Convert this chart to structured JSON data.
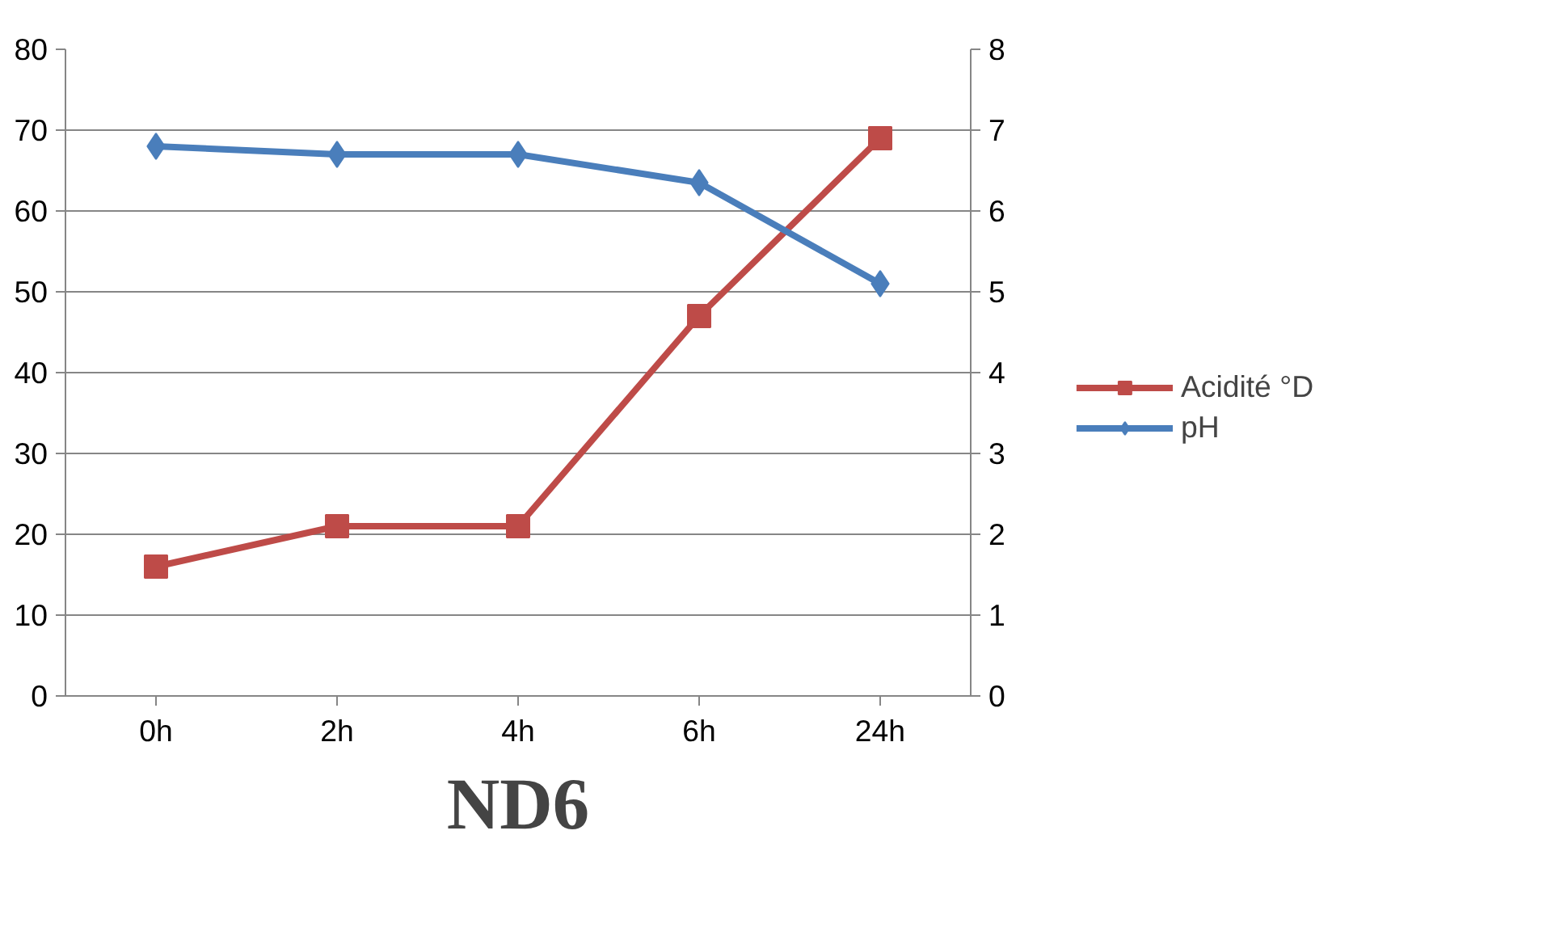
{
  "chart_data": {
    "type": "line",
    "title": "ND6",
    "categories": [
      "0h",
      "2h",
      "4h",
      "6h",
      "24h"
    ],
    "series": [
      {
        "name": "Acidité °D",
        "color": "#be4b48",
        "marker": "square",
        "values": [
          16,
          21,
          21,
          47,
          69
        ]
      },
      {
        "name": "pH",
        "color": "#4a7ebb",
        "marker": "diamond",
        "axis": "y2",
        "values": [
          6.8,
          6.7,
          6.7,
          6.35,
          5.1
        ]
      }
    ],
    "ylim": [
      0,
      80
    ],
    "yticks": [
      0,
      10,
      20,
      30,
      40,
      50,
      60,
      70,
      80
    ],
    "y2lim": [
      0,
      8
    ],
    "y2ticks": [
      0,
      1,
      2,
      3,
      4,
      5,
      6,
      7,
      8
    ],
    "grid": "y",
    "legend": "right"
  }
}
